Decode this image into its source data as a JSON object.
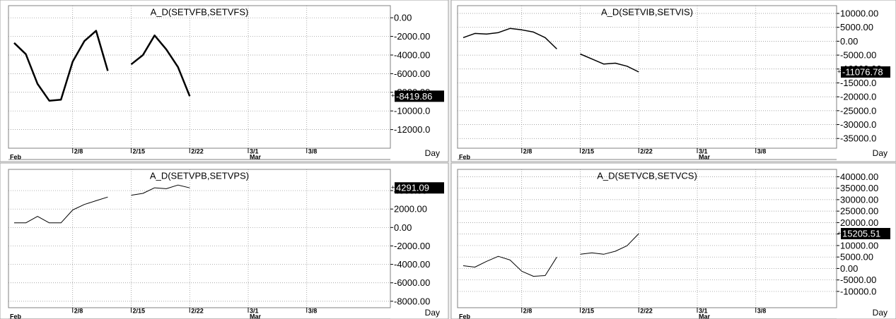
{
  "chart_data": [
    {
      "type": "line",
      "title": "A_D(SETVFB,SETVFS)",
      "x_label": "Day",
      "categories": [
        null,
        null,
        null,
        null,
        null,
        "2/8",
        null,
        null,
        null,
        null,
        "2/15",
        null,
        null,
        null,
        null,
        "2/22",
        null,
        null,
        null,
        null,
        "3/1",
        null,
        null,
        null,
        null,
        "3/8",
        null,
        null,
        null,
        null,
        null,
        null,
        null
      ],
      "month_labels": [
        "Feb",
        null,
        null,
        null,
        null,
        null,
        null,
        null,
        null,
        null,
        null,
        null,
        null,
        null,
        null,
        null,
        null,
        null,
        null,
        null,
        "Mar",
        null,
        null,
        null,
        null,
        null,
        null,
        null,
        null,
        null,
        null,
        null,
        null
      ],
      "values": [
        -2700,
        -3900,
        -7100,
        -8900,
        -8800,
        -4700,
        -2500,
        -1400,
        -5700,
        null,
        -5000,
        -4000,
        -1900,
        -3400,
        -5300,
        -8419.86,
        null,
        null,
        null,
        null,
        null,
        null,
        null,
        null,
        null,
        null,
        null,
        null,
        null,
        null,
        null,
        null,
        null
      ],
      "color": "#000000",
      "line_width": 2.5,
      "grid": true,
      "ylim": [
        -14000,
        1300
      ],
      "yticks": [
        {
          "value": 0,
          "label": "0.00"
        },
        {
          "value": -2000,
          "label": "-2000.00"
        },
        {
          "value": -4000,
          "label": "-4000.00"
        },
        {
          "value": -6000,
          "label": "-6000.00"
        },
        {
          "value": -8000,
          "label": "-8000.00"
        },
        {
          "value": -10000,
          "label": "-10000.0"
        },
        {
          "value": -12000,
          "label": "-12000.0"
        }
      ]
    },
    {
      "type": "line",
      "title": "A_D(SETVIB,SETVIS)",
      "x_label": "Day",
      "categories": [
        null,
        null,
        null,
        null,
        null,
        "2/8",
        null,
        null,
        null,
        null,
        "2/15",
        null,
        null,
        null,
        null,
        "2/22",
        null,
        null,
        null,
        null,
        "3/1",
        null,
        null,
        null,
        null,
        "3/8",
        null,
        null,
        null,
        null,
        null,
        null,
        null
      ],
      "month_labels": [
        "Feb",
        null,
        null,
        null,
        null,
        null,
        null,
        null,
        null,
        null,
        null,
        null,
        null,
        null,
        null,
        null,
        null,
        null,
        null,
        null,
        "Mar",
        null,
        null,
        null,
        null,
        null,
        null,
        null,
        null,
        null,
        null,
        null,
        null
      ],
      "values": [
        1300,
        2800,
        2600,
        3100,
        4600,
        4100,
        3300,
        1300,
        -2800,
        null,
        -4600,
        -6400,
        -8200,
        -7900,
        -9000,
        -11076.78,
        null,
        null,
        null,
        null,
        null,
        null,
        null,
        null,
        null,
        null,
        null,
        null,
        null,
        null,
        null,
        null,
        null
      ],
      "color": "#000000",
      "line_width": 1.5,
      "grid": true,
      "ylim": [
        -38500,
        12800
      ],
      "yticks": [
        {
          "value": 10000,
          "label": "10000.00"
        },
        {
          "value": 5000,
          "label": "5000.00"
        },
        {
          "value": 0,
          "label": "0.00"
        },
        {
          "value": -5000,
          "label": "-5000.00"
        },
        {
          "value": -10000,
          "label": "-10000.00"
        },
        {
          "value": -15000,
          "label": "-15000.0"
        },
        {
          "value": -20000,
          "label": "-20000.0"
        },
        {
          "value": -25000,
          "label": "-25000.0"
        },
        {
          "value": -30000,
          "label": "-30000.0"
        },
        {
          "value": -35000,
          "label": "-35000.0"
        }
      ]
    },
    {
      "type": "line",
      "title": "A_D(SETVPB,SETVPS)",
      "x_label": "Day",
      "categories": [
        null,
        null,
        null,
        null,
        null,
        "2/8",
        null,
        null,
        null,
        null,
        "2/15",
        null,
        null,
        null,
        null,
        "2/22",
        null,
        null,
        null,
        null,
        "3/1",
        null,
        null,
        null,
        null,
        "3/8",
        null,
        null,
        null,
        null,
        null,
        null,
        null
      ],
      "month_labels": [
        "Feb",
        null,
        null,
        null,
        null,
        null,
        null,
        null,
        null,
        null,
        null,
        null,
        null,
        null,
        null,
        null,
        null,
        null,
        null,
        null,
        "Mar",
        null,
        null,
        null,
        null,
        null,
        null,
        null,
        null,
        null,
        null,
        null,
        null
      ],
      "values": [
        500,
        500,
        1200,
        500,
        500,
        1900,
        2500,
        2900,
        3300,
        null,
        3500,
        3700,
        4300,
        4200,
        4600,
        4291.09,
        null,
        null,
        null,
        null,
        null,
        null,
        null,
        null,
        null,
        null,
        null,
        null,
        null,
        null,
        null,
        null,
        null
      ],
      "color": "#000000",
      "line_width": 1,
      "grid": true,
      "ylim": [
        -8700,
        6300
      ],
      "yticks": [
        {
          "value": 4000,
          "label": "4000.00"
        },
        {
          "value": 2000,
          "label": "2000.00"
        },
        {
          "value": 0,
          "label": "0.00"
        },
        {
          "value": -2000,
          "label": "-2000.00"
        },
        {
          "value": -4000,
          "label": "-4000.00"
        },
        {
          "value": -6000,
          "label": "-6000.00"
        },
        {
          "value": -8000,
          "label": "-8000.00"
        }
      ]
    },
    {
      "type": "line",
      "title": "A_D(SETVCB,SETVCS)",
      "x_label": "Day",
      "categories": [
        null,
        null,
        null,
        null,
        null,
        "2/8",
        null,
        null,
        null,
        null,
        "2/15",
        null,
        null,
        null,
        null,
        "2/22",
        null,
        null,
        null,
        null,
        "3/1",
        null,
        null,
        null,
        null,
        "3/8",
        null,
        null,
        null,
        null,
        null,
        null,
        null
      ],
      "month_labels": [
        "Feb",
        null,
        null,
        null,
        null,
        null,
        null,
        null,
        null,
        null,
        null,
        null,
        null,
        null,
        null,
        null,
        null,
        null,
        null,
        null,
        "Mar",
        null,
        null,
        null,
        null,
        null,
        null,
        null,
        null,
        null,
        null,
        null,
        null
      ],
      "values": [
        1200,
        600,
        3100,
        5300,
        3700,
        -1200,
        -3400,
        -3100,
        5000,
        null,
        6200,
        6800,
        6200,
        7500,
        9900,
        15205.51,
        null,
        null,
        null,
        null,
        null,
        null,
        null,
        null,
        null,
        null,
        null,
        null,
        null,
        null,
        null,
        null,
        null
      ],
      "color": "#000000",
      "line_width": 1,
      "grid": true,
      "ylim": [
        -17100,
        43200
      ],
      "yticks": [
        {
          "value": 40000,
          "label": "40000.00"
        },
        {
          "value": 35000,
          "label": "35000.00"
        },
        {
          "value": 30000,
          "label": "30000.00"
        },
        {
          "value": 25000,
          "label": "25000.00"
        },
        {
          "value": 20000,
          "label": "20000.00"
        },
        {
          "value": 15000,
          "label": "15000.00"
        },
        {
          "value": 10000,
          "label": "10000.00"
        },
        {
          "value": 5000,
          "label": "5000.00"
        },
        {
          "value": 0,
          "label": "0.00"
        },
        {
          "value": -5000,
          "label": "-5000.00"
        },
        {
          "value": -10000,
          "label": "-10000.0"
        }
      ]
    }
  ]
}
